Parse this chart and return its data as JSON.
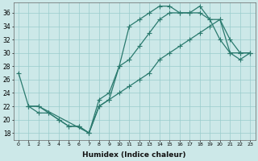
{
  "xlabel": "Humidex (Indice chaleur)",
  "bg_color": "#cce8e8",
  "grid_color": "#99cccc",
  "line_color": "#2a7a6e",
  "xlim": [
    -0.5,
    23.5
  ],
  "ylim": [
    17,
    37.5
  ],
  "yticks": [
    18,
    20,
    22,
    24,
    26,
    28,
    30,
    32,
    34,
    36
  ],
  "xticks": [
    0,
    1,
    2,
    3,
    4,
    5,
    6,
    7,
    8,
    9,
    10,
    11,
    12,
    13,
    14,
    15,
    16,
    17,
    18,
    19,
    20,
    21,
    22,
    23
  ],
  "line1_x": [
    0,
    1,
    2,
    3,
    4,
    5,
    6,
    7,
    8,
    9,
    10,
    11,
    12,
    13,
    14,
    15,
    16,
    17,
    18,
    19,
    20,
    21,
    22,
    23
  ],
  "line1_y": [
    27,
    22,
    22,
    21,
    20,
    19,
    19,
    18,
    22,
    23,
    28,
    34,
    35,
    36,
    37,
    37,
    36,
    36,
    37,
    35,
    32,
    30,
    29,
    30
  ],
  "line2_x": [
    1,
    2,
    3,
    4,
    5,
    6,
    7,
    8,
    9,
    10,
    11,
    12,
    13,
    14,
    15,
    16,
    17,
    18,
    19,
    20,
    21,
    22,
    23
  ],
  "line2_y": [
    22,
    21,
    21,
    20,
    19,
    19,
    18,
    23,
    24,
    28,
    29,
    31,
    33,
    35,
    36,
    36,
    36,
    36,
    35,
    35,
    32,
    30,
    30
  ],
  "line3_x": [
    1,
    2,
    7,
    8,
    9,
    10,
    11,
    12,
    13,
    14,
    15,
    16,
    17,
    18,
    19,
    20,
    21,
    22,
    23
  ],
  "line3_y": [
    22,
    22,
    18,
    22,
    23,
    24,
    25,
    26,
    27,
    29,
    30,
    31,
    32,
    33,
    34,
    35,
    30,
    30,
    30
  ]
}
